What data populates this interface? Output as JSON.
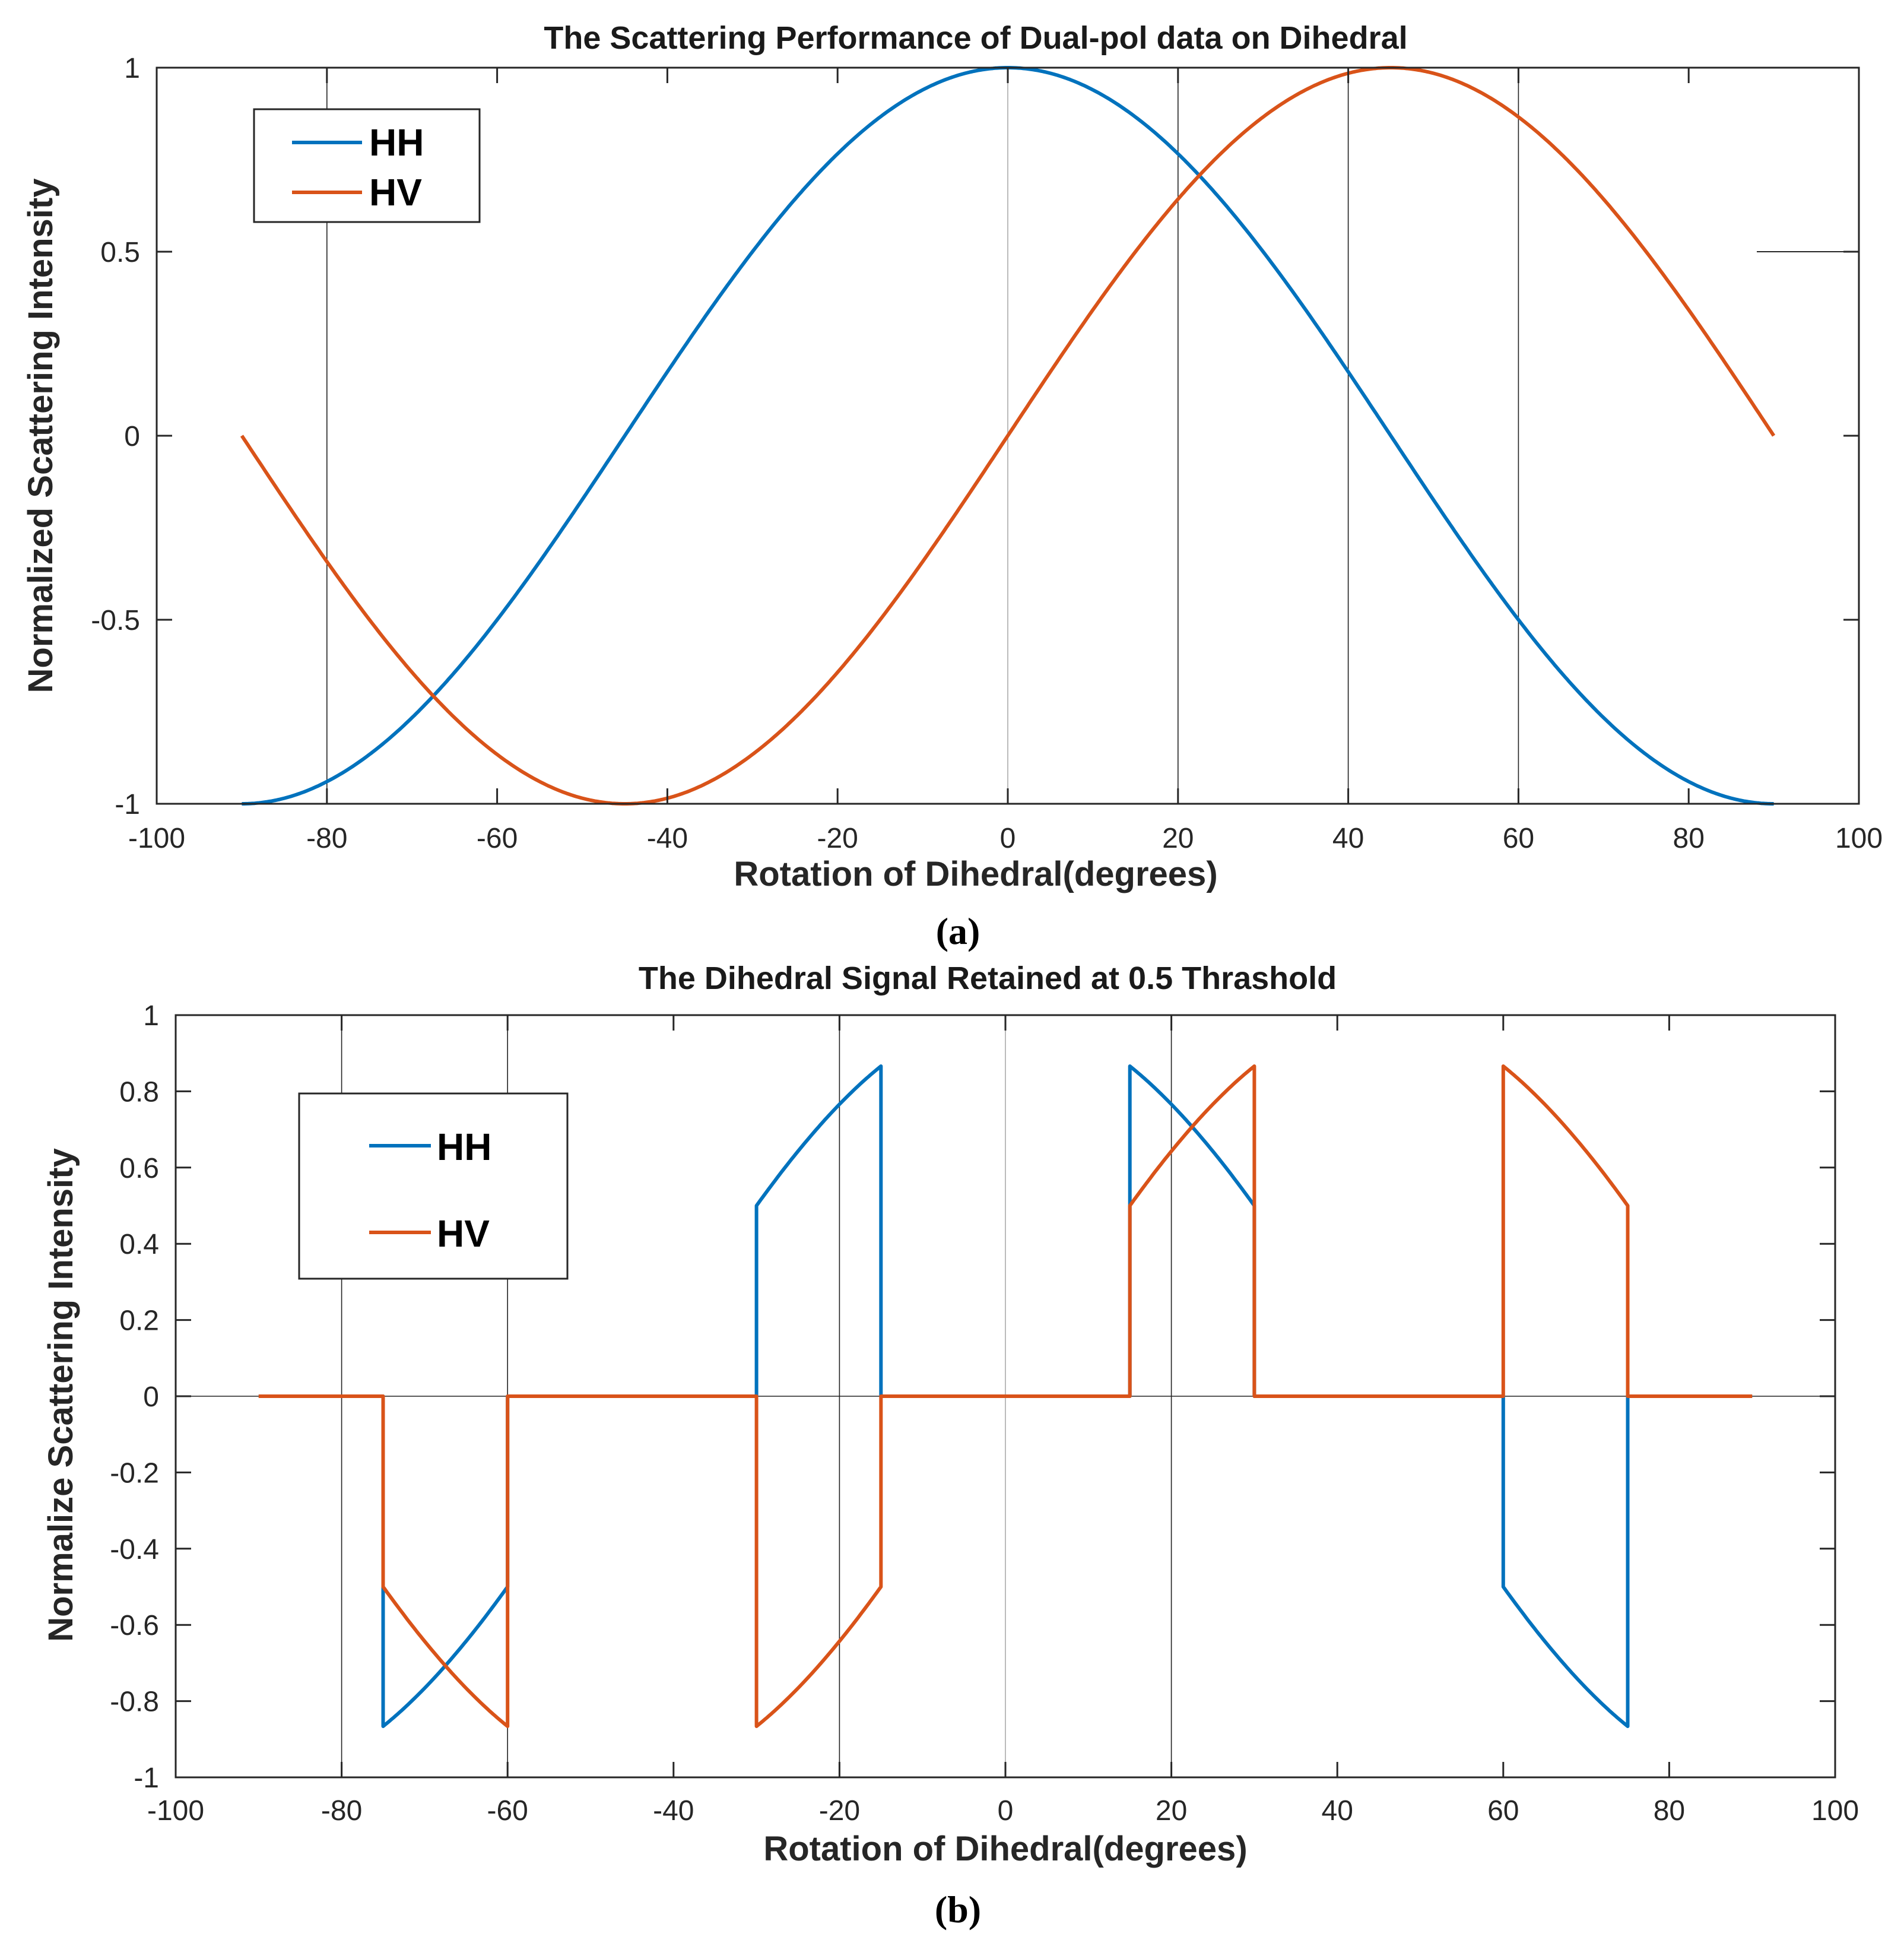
{
  "colors": {
    "HH": "#0072BD",
    "HV": "#D95319",
    "axis": "#262626",
    "grid": "#222222"
  },
  "chart_data": [
    {
      "id": "a",
      "type": "line",
      "title": "The Scattering Performance of Dual-pol data on Dihedral",
      "xlabel": "Rotation of  Dihedral(degrees)",
      "ylabel": "Normalized Scattering Intensity",
      "caption": "(a)",
      "xlim": [
        -100,
        100
      ],
      "ylim": [
        -1,
        1
      ],
      "xticks": [
        -100,
        -80,
        -60,
        -40,
        -20,
        0,
        20,
        40,
        60,
        80,
        100
      ],
      "yticks": [
        -1,
        -0.5,
        0,
        0.5,
        1
      ],
      "xtick_labels": [
        "-100",
        "-80",
        "-60",
        "-40",
        "-20",
        "0",
        "20",
        "40",
        "60",
        "80",
        "100"
      ],
      "ytick_labels": [
        "-1",
        "-0.5",
        "0",
        "0.5",
        "1"
      ],
      "vlines": [
        -80,
        0,
        20,
        40,
        60
      ],
      "hlines": [],
      "legend_position": "top-left",
      "series": [
        {
          "name": "HH",
          "formula": "cos(2x)",
          "x": [
            -90,
            -80,
            -70,
            -60,
            -50,
            -40,
            -30,
            -20,
            -10,
            0,
            10,
            20,
            30,
            40,
            50,
            60,
            70,
            80,
            90
          ],
          "values": [
            -1,
            -0.94,
            -0.766,
            -0.5,
            -0.174,
            0.174,
            0.5,
            0.766,
            0.94,
            1,
            0.94,
            0.766,
            0.5,
            0.174,
            -0.174,
            -0.5,
            -0.766,
            -0.94,
            -1
          ]
        },
        {
          "name": "HV",
          "formula": "sin(2x)",
          "x": [
            -90,
            -80,
            -70,
            -60,
            -50,
            -40,
            -30,
            -20,
            -10,
            0,
            10,
            20,
            30,
            40,
            50,
            60,
            70,
            80,
            90
          ],
          "values": [
            0,
            -0.342,
            -0.643,
            -0.866,
            -0.985,
            -0.985,
            -0.866,
            -0.643,
            -0.342,
            0,
            0.342,
            0.643,
            0.866,
            0.985,
            0.985,
            0.866,
            0.643,
            0.342,
            0
          ]
        }
      ]
    },
    {
      "id": "b",
      "type": "line",
      "title": "The Dihedral Signal Retained at 0.5 Thrashold",
      "xlabel": "Rotation of Dihedral(degrees)",
      "ylabel": "Normalize Scattering Intensity",
      "caption": "(b)",
      "xlim": [
        -100,
        100
      ],
      "ylim": [
        -1,
        1
      ],
      "xticks": [
        -100,
        -80,
        -60,
        -40,
        -20,
        0,
        20,
        40,
        60,
        80,
        100
      ],
      "yticks": [
        -1,
        -0.8,
        -0.6,
        -0.4,
        -0.2,
        0,
        0.2,
        0.4,
        0.6,
        0.8,
        1
      ],
      "xtick_labels": [
        "-100",
        "-80",
        "-60",
        "-40",
        "-20",
        "0",
        "20",
        "40",
        "60",
        "80",
        "100"
      ],
      "ytick_labels": [
        "-1",
        "-0.8",
        "-0.6",
        "-0.4",
        "-0.2",
        "0",
        "0.2",
        "0.4",
        "0.6",
        "0.8",
        "1"
      ],
      "vlines": [
        -80,
        -60,
        -20,
        0,
        20
      ],
      "hlines": [
        0
      ],
      "legend_position": "top-left",
      "threshold": 0.5,
      "series": [
        {
          "name": "HH",
          "formula": "cos(2x) where |cos(2x)|>=0.5 and |sin(2x)|>=0.5, else 0",
          "x": [
            -90,
            -75,
            -75,
            -67.5,
            -60,
            -60,
            -30,
            -30,
            -22.5,
            -15,
            -15,
            15,
            15,
            22.5,
            30,
            30,
            60,
            60,
            67.5,
            75,
            75,
            90
          ],
          "values": [
            0,
            0,
            -0.866,
            -0.707,
            -0.5,
            0,
            0,
            0.5,
            0.707,
            0.866,
            0,
            0,
            0.866,
            0.707,
            0.5,
            0,
            0,
            -0.5,
            -0.707,
            -0.866,
            0,
            0
          ]
        },
        {
          "name": "HV",
          "formula": "sin(2x) where |cos(2x)|>=0.5 and |sin(2x)|>=0.5, else 0",
          "x": [
            -90,
            -75,
            -75,
            -67.5,
            -60,
            -60,
            -30,
            -30,
            -22.5,
            -15,
            -15,
            15,
            15,
            22.5,
            30,
            30,
            60,
            60,
            67.5,
            75,
            75,
            90
          ],
          "values": [
            0,
            0,
            -0.5,
            -0.707,
            -0.866,
            0,
            0,
            -0.866,
            -0.707,
            -0.5,
            0,
            0,
            0.5,
            0.707,
            0.866,
            0,
            0,
            0.866,
            0.707,
            0.5,
            0,
            0
          ]
        }
      ]
    }
  ]
}
